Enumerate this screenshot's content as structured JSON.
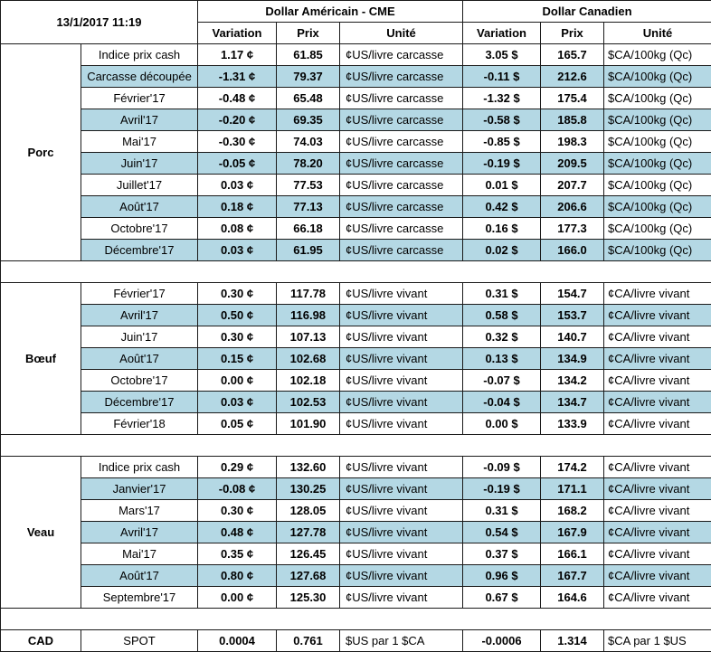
{
  "header": {
    "datetime": "13/1/2017 11:19",
    "usd_group": "Dollar Américain - CME",
    "cad_group": "Dollar Canadien",
    "col_variation": "Variation",
    "col_prix": "Prix",
    "col_unite": "Unité"
  },
  "sections": [
    {
      "name": "Porc",
      "rows": [
        {
          "label": "Indice prix cash",
          "usd_var": "1.17 ¢",
          "usd_var_sign": "pos",
          "usd_price": "61.85",
          "usd_unit": "¢US/livre carcasse",
          "cad_var": "3.05 $",
          "cad_var_sign": "pos",
          "cad_price": "165.7",
          "cad_unit": "$CA/100kg (Qc)"
        },
        {
          "label": "Carcasse découpée",
          "usd_var": "-1.31 ¢",
          "usd_var_sign": "neg",
          "usd_price": "79.37",
          "usd_unit": "¢US/livre carcasse",
          "cad_var": "-0.11 $",
          "cad_var_sign": "neg",
          "cad_price": "212.6",
          "cad_unit": "$CA/100kg (Qc)"
        },
        {
          "label": "Février'17",
          "usd_var": "-0.48 ¢",
          "usd_var_sign": "neg",
          "usd_price": "65.48",
          "usd_unit": "¢US/livre carcasse",
          "cad_var": "-1.32 $",
          "cad_var_sign": "neg",
          "cad_price": "175.4",
          "cad_unit": "$CA/100kg (Qc)"
        },
        {
          "label": "Avril'17",
          "usd_var": "-0.20 ¢",
          "usd_var_sign": "neg",
          "usd_price": "69.35",
          "usd_unit": "¢US/livre carcasse",
          "cad_var": "-0.58 $",
          "cad_var_sign": "neg",
          "cad_price": "185.8",
          "cad_unit": "$CA/100kg (Qc)"
        },
        {
          "label": "Mai'17",
          "usd_var": "-0.30 ¢",
          "usd_var_sign": "neg",
          "usd_price": "74.03",
          "usd_unit": "¢US/livre carcasse",
          "cad_var": "-0.85 $",
          "cad_var_sign": "neg",
          "cad_price": "198.3",
          "cad_unit": "$CA/100kg (Qc)"
        },
        {
          "label": "Juin'17",
          "usd_var": "-0.05 ¢",
          "usd_var_sign": "neg",
          "usd_price": "78.20",
          "usd_unit": "¢US/livre carcasse",
          "cad_var": "-0.19 $",
          "cad_var_sign": "neg",
          "cad_price": "209.5",
          "cad_unit": "$CA/100kg (Qc)"
        },
        {
          "label": "Juillet'17",
          "usd_var": "0.03 ¢",
          "usd_var_sign": "pos",
          "usd_price": "77.53",
          "usd_unit": "¢US/livre carcasse",
          "cad_var": "0.01 $",
          "cad_var_sign": "pos",
          "cad_price": "207.7",
          "cad_unit": "$CA/100kg (Qc)"
        },
        {
          "label": "Août'17",
          "usd_var": "0.18 ¢",
          "usd_var_sign": "pos",
          "usd_price": "77.13",
          "usd_unit": "¢US/livre carcasse",
          "cad_var": "0.42 $",
          "cad_var_sign": "pos",
          "cad_price": "206.6",
          "cad_unit": "$CA/100kg (Qc)"
        },
        {
          "label": "Octobre'17",
          "usd_var": "0.08 ¢",
          "usd_var_sign": "pos",
          "usd_price": "66.18",
          "usd_unit": "¢US/livre carcasse",
          "cad_var": "0.16 $",
          "cad_var_sign": "pos",
          "cad_price": "177.3",
          "cad_unit": "$CA/100kg (Qc)"
        },
        {
          "label": "Décembre'17",
          "usd_var": "0.03 ¢",
          "usd_var_sign": "pos",
          "usd_price": "61.95",
          "usd_unit": "¢US/livre carcasse",
          "cad_var": "0.02 $",
          "cad_var_sign": "pos",
          "cad_price": "166.0",
          "cad_unit": "$CA/100kg (Qc)"
        }
      ]
    },
    {
      "name": "Bœuf",
      "rows": [
        {
          "label": "Février'17",
          "usd_var": "0.30 ¢",
          "usd_var_sign": "pos",
          "usd_price": "117.78",
          "usd_unit": "¢US/livre vivant",
          "cad_var": "0.31 $",
          "cad_var_sign": "pos",
          "cad_price": "154.7",
          "cad_unit": "¢CA/livre vivant"
        },
        {
          "label": "Avril'17",
          "usd_var": "0.50 ¢",
          "usd_var_sign": "pos",
          "usd_price": "116.98",
          "usd_unit": "¢US/livre vivant",
          "cad_var": "0.58 $",
          "cad_var_sign": "pos",
          "cad_price": "153.7",
          "cad_unit": "¢CA/livre vivant"
        },
        {
          "label": "Juin'17",
          "usd_var": "0.30 ¢",
          "usd_var_sign": "pos",
          "usd_price": "107.13",
          "usd_unit": "¢US/livre vivant",
          "cad_var": "0.32 $",
          "cad_var_sign": "pos",
          "cad_price": "140.7",
          "cad_unit": "¢CA/livre vivant"
        },
        {
          "label": "Août'17",
          "usd_var": "0.15 ¢",
          "usd_var_sign": "pos",
          "usd_price": "102.68",
          "usd_unit": "¢US/livre vivant",
          "cad_var": "0.13 $",
          "cad_var_sign": "pos",
          "cad_price": "134.9",
          "cad_unit": "¢CA/livre vivant"
        },
        {
          "label": "Octobre'17",
          "usd_var": "0.00 ¢",
          "usd_var_sign": "zero",
          "usd_price": "102.18",
          "usd_unit": "¢US/livre vivant",
          "cad_var": "-0.07 $",
          "cad_var_sign": "neg",
          "cad_price": "134.2",
          "cad_unit": "¢CA/livre vivant"
        },
        {
          "label": "Décembre'17",
          "usd_var": "0.03 ¢",
          "usd_var_sign": "pos",
          "usd_price": "102.53",
          "usd_unit": "¢US/livre vivant",
          "cad_var": "-0.04 $",
          "cad_var_sign": "neg",
          "cad_price": "134.7",
          "cad_unit": "¢CA/livre vivant"
        },
        {
          "label": "Février'18",
          "usd_var": "0.05 ¢",
          "usd_var_sign": "pos",
          "usd_price": "101.90",
          "usd_unit": "¢US/livre vivant",
          "cad_var": "0.00 $",
          "cad_var_sign": "neg",
          "cad_price": "133.9",
          "cad_unit": "¢CA/livre vivant"
        }
      ]
    },
    {
      "name": "Veau",
      "rows": [
        {
          "label": "Indice prix cash",
          "usd_var": "0.29 ¢",
          "usd_var_sign": "pos",
          "usd_price": "132.60",
          "usd_unit": "¢US/livre vivant",
          "cad_var": "-0.09 $",
          "cad_var_sign": "neg",
          "cad_price": "174.2",
          "cad_unit": "¢CA/livre vivant"
        },
        {
          "label": "Janvier'17",
          "usd_var": "-0.08 ¢",
          "usd_var_sign": "neg",
          "usd_price": "130.25",
          "usd_unit": "¢US/livre vivant",
          "cad_var": "-0.19 $",
          "cad_var_sign": "neg",
          "cad_price": "171.1",
          "cad_unit": "¢CA/livre vivant"
        },
        {
          "label": "Mars'17",
          "usd_var": "0.30 ¢",
          "usd_var_sign": "pos",
          "usd_price": "128.05",
          "usd_unit": "¢US/livre vivant",
          "cad_var": "0.31 $",
          "cad_var_sign": "pos",
          "cad_price": "168.2",
          "cad_unit": "¢CA/livre vivant"
        },
        {
          "label": "Avril'17",
          "usd_var": "0.48 ¢",
          "usd_var_sign": "pos",
          "usd_price": "127.78",
          "usd_unit": "¢US/livre vivant",
          "cad_var": "0.54 $",
          "cad_var_sign": "pos",
          "cad_price": "167.9",
          "cad_unit": "¢CA/livre vivant"
        },
        {
          "label": "Mai'17",
          "usd_var": "0.35 ¢",
          "usd_var_sign": "pos",
          "usd_price": "126.45",
          "usd_unit": "¢US/livre vivant",
          "cad_var": "0.37 $",
          "cad_var_sign": "pos",
          "cad_price": "166.1",
          "cad_unit": "¢CA/livre vivant"
        },
        {
          "label": "Août'17",
          "usd_var": "0.80 ¢",
          "usd_var_sign": "pos",
          "usd_price": "127.68",
          "usd_unit": "¢US/livre vivant",
          "cad_var": "0.96 $",
          "cad_var_sign": "pos",
          "cad_price": "167.7",
          "cad_unit": "¢CA/livre vivant"
        },
        {
          "label": "Septembre'17",
          "usd_var": "0.00 ¢",
          "usd_var_sign": "zero",
          "usd_price": "125.30",
          "usd_unit": "¢US/livre vivant",
          "cad_var": "0.67 $",
          "cad_var_sign": "pos",
          "cad_price": "164.6",
          "cad_unit": "¢CA/livre vivant"
        }
      ]
    }
  ],
  "cad": {
    "name": "CAD",
    "label": "SPOT",
    "usd_var": "0.0004",
    "usd_var_sign": "pos",
    "usd_price": "0.761",
    "usd_unit": "$US par 1 $CA",
    "cad_var": "-0.0006",
    "cad_var_sign": "neg",
    "cad_price": "1.314",
    "cad_unit": "$CA par 1 $US"
  },
  "colors": {
    "positive": "#22b14c",
    "negative": "#e60000",
    "alt_row": "#b4d8e4",
    "border": "#1a1a1a"
  }
}
